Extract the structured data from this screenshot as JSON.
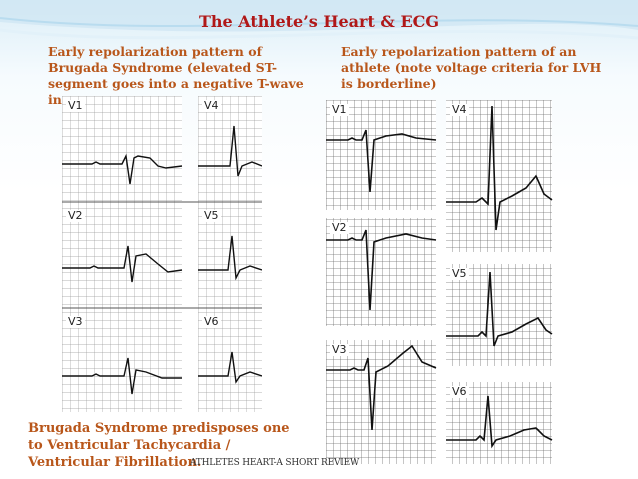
{
  "slide": {
    "title": "The Athlete’s Heart & ECG",
    "left_caption": "Early repolarization pattern of Brugada Syndrome (elevated ST-segment goes into a negative T-wave in",
    "right_caption": "Early repolarization pattern of an athlete (note voltage criteria for LVH is borderline)",
    "bottom_note": "Brugada Syndrome predisposes one to Ventricular Tachycardia / Ventricular Fibrillation.",
    "footer": "ATHLETES HEART-A SHORT REVIEW"
  },
  "left_ecg": {
    "leads": [
      "V1",
      "V2",
      "V3",
      "V4",
      "V5",
      "V6"
    ]
  },
  "right_ecg": {
    "leads": [
      "V1",
      "V2",
      "V3",
      "V4",
      "V5",
      "V6"
    ]
  },
  "colors": {
    "title": "#b01818",
    "caption": "#b8561a",
    "grid": "#9a9a9a",
    "trace": "#111111"
  }
}
